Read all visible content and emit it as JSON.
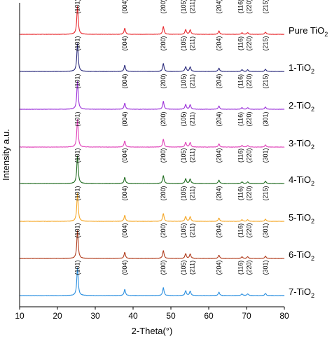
{
  "chart_data": {
    "type": "line",
    "xlabel": "2-Theta(°)",
    "ylabel": "Intensity a.u.",
    "xlim": [
      10,
      80
    ],
    "xticks": [
      10,
      20,
      30,
      40,
      50,
      60,
      70,
      80
    ],
    "peaks": [
      {
        "two_theta": 25.3,
        "height": 1.0
      },
      {
        "two_theta": 37.8,
        "height": 0.22
      },
      {
        "two_theta": 48.0,
        "height": 0.28
      },
      {
        "two_theta": 53.9,
        "height": 0.17
      },
      {
        "two_theta": 55.1,
        "height": 0.16
      },
      {
        "two_theta": 62.7,
        "height": 0.12
      },
      {
        "two_theta": 68.8,
        "height": 0.06
      },
      {
        "two_theta": 70.3,
        "height": 0.06
      },
      {
        "two_theta": 75.0,
        "height": 0.08
      }
    ],
    "series": [
      {
        "name_main": "Pure TiO",
        "name_sub": "2",
        "color": "#e8262b",
        "scale": 1.0,
        "peak_labels": [
          "(101)",
          "(004)",
          "(200)",
          "(105)",
          "(211)",
          "(204)",
          "(116)",
          "(220)",
          "(215)"
        ]
      },
      {
        "name_main": "1-TiO",
        "name_sub": "2",
        "color": "#2a2a7c",
        "scale": 1.0,
        "peak_labels": [
          "(101)",
          "(004)",
          "(200)",
          "(105)",
          "(211)",
          "(204)",
          "(116)",
          "(220)",
          "(215)"
        ]
      },
      {
        "name_main": "2-TiO",
        "name_sub": "2",
        "color": "#9b30d9",
        "scale": 1.0,
        "peak_labels": [
          "(101)",
          "(004)",
          "(200)",
          "(105)",
          "(211)",
          "(204)",
          "(116)",
          "(220)",
          "(215)"
        ]
      },
      {
        "name_main": "3-TiO",
        "name_sub": "2",
        "color": "#e040b8",
        "scale": 1.0,
        "peak_labels": [
          "(101)",
          "(004)",
          "(200)",
          "(105)",
          "(211)",
          "(204)",
          "(116)",
          "(220)",
          "(301)"
        ]
      },
      {
        "name_main": "4-TiO",
        "name_sub": "2",
        "color": "#1f6b1f",
        "scale": 1.0,
        "peak_labels": [
          "(101)",
          "(004)",
          "(200)",
          "(105)",
          "(211)",
          "(204)",
          "(116)",
          "(220)",
          "(301)"
        ]
      },
      {
        "name_main": "5-TiO",
        "name_sub": "2",
        "color": "#f5a623",
        "scale": 1.0,
        "peak_labels": [
          "(101)",
          "(004)",
          "(200)",
          "(105)",
          "(211)",
          "(204)",
          "(116)",
          "(220)",
          "(215)"
        ]
      },
      {
        "name_main": "6-TiO",
        "name_sub": "2",
        "color": "#b03a1a",
        "scale": 1.0,
        "peak_labels": [
          "(101)",
          "(004)",
          "(200)",
          "(105)",
          "(211)",
          "(204)",
          "(116)",
          "(220)",
          "(301)"
        ]
      },
      {
        "name_main": "7-TiO",
        "name_sub": "2",
        "color": "#2a8fe0",
        "scale": 1.0,
        "peak_labels": [
          "(101)",
          "(004)",
          "(200)",
          "(105)",
          "(211)",
          "(204)",
          "(116)",
          "(220)",
          "(301)"
        ]
      }
    ]
  }
}
